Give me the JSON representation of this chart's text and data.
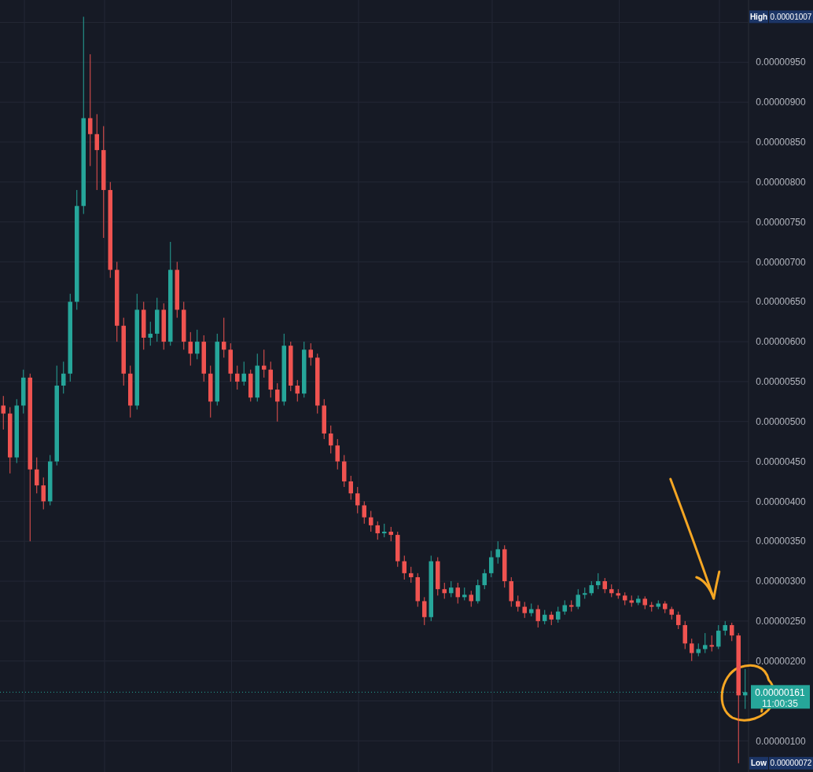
{
  "chart_data": {
    "type": "candlestick",
    "categories": [
      null,
      null,
      null,
      null,
      null,
      null,
      null,
      null,
      null,
      null,
      null,
      null,
      null,
      null,
      null,
      null,
      null,
      null,
      null,
      null,
      null,
      null,
      null,
      null,
      null,
      null,
      null,
      null,
      null,
      null,
      null,
      null,
      null,
      null,
      null,
      null,
      null,
      null,
      null,
      null,
      null,
      null,
      null,
      null,
      null,
      null,
      null,
      null,
      null,
      null,
      null,
      null,
      null,
      null,
      null,
      null,
      null,
      null,
      null,
      null,
      null,
      null,
      null,
      null,
      null,
      null,
      null,
      null,
      null,
      null,
      null,
      null,
      null,
      null,
      null,
      null,
      null,
      null,
      null,
      null,
      null,
      null,
      null,
      null,
      null,
      null,
      null,
      null,
      null,
      null,
      null,
      null,
      null,
      null,
      null,
      null,
      null,
      null,
      null,
      null,
      null,
      null,
      null,
      null,
      null,
      null,
      null,
      null,
      null,
      null,
      null,
      null
    ],
    "ohlc": [
      [
        5.2e-06,
        5.32e-06,
        4.9e-06,
        5.1e-06
      ],
      [
        5.1e-06,
        5.18e-06,
        4.35e-06,
        4.55e-06
      ],
      [
        4.55e-06,
        5.28e-06,
        4.48e-06,
        5.2e-06
      ],
      [
        5.2e-06,
        5.65e-06,
        5.1e-06,
        5.55e-06
      ],
      [
        5.55e-06,
        5.6e-06,
        3.5e-06,
        4.4e-06
      ],
      [
        4.4e-06,
        4.55e-06,
        4.1e-06,
        4.2e-06
      ],
      [
        4.2e-06,
        4.3e-06,
        3.9e-06,
        4e-06
      ],
      [
        4e-06,
        4.58e-06,
        3.95e-06,
        4.5e-06
      ],
      [
        4.5e-06,
        5.7e-06,
        4.45e-06,
        5.45e-06
      ],
      [
        5.45e-06,
        5.75e-06,
        5.35e-06,
        5.6e-06
      ],
      [
        5.6e-06,
        6.6e-06,
        5.5e-06,
        6.5e-06
      ],
      [
        6.5e-06,
        7.9e-06,
        6.4e-06,
        7.7e-06
      ],
      [
        7.7e-06,
        1.007e-05,
        7.6e-06,
        8.8e-06
      ],
      [
        8.8e-06,
        9.6e-06,
        8.2e-06,
        8.6e-06
      ],
      [
        8.6e-06,
        8.85e-06,
        7.9e-06,
        8.4e-06
      ],
      [
        8.4e-06,
        8.7e-06,
        7.3e-06,
        7.9e-06
      ],
      [
        7.9e-06,
        8e-06,
        6.8e-06,
        6.9e-06
      ],
      [
        6.9e-06,
        7e-06,
        6e-06,
        6.2e-06
      ],
      [
        6.2e-06,
        6.3e-06,
        5.45e-06,
        5.6e-06
      ],
      [
        5.6e-06,
        5.7e-06,
        5.05e-06,
        5.2e-06
      ],
      [
        5.2e-06,
        6.6e-06,
        5.15e-06,
        6.4e-06
      ],
      [
        6.4e-06,
        6.5e-06,
        5.9e-06,
        6.05e-06
      ],
      [
        6.05e-06,
        6.25e-06,
        5.95e-06,
        6.1e-06
      ],
      [
        6.1e-06,
        6.55e-06,
        6e-06,
        6.4e-06
      ],
      [
        6.4e-06,
        6.48e-06,
        5.9e-06,
        6e-06
      ],
      [
        6e-06,
        7.25e-06,
        5.95e-06,
        6.9e-06
      ],
      [
        6.9e-06,
        7e-06,
        6.3e-06,
        6.4e-06
      ],
      [
        6.4e-06,
        6.5e-06,
        5.9e-06,
        6e-06
      ],
      [
        6e-06,
        6.12e-06,
        5.7e-06,
        5.85e-06
      ],
      [
        5.85e-06,
        6.15e-06,
        5.78e-06,
        6e-06
      ],
      [
        6e-06,
        6.08e-06,
        5.5e-06,
        5.6e-06
      ],
      [
        5.6e-06,
        5.7e-06,
        5.05e-06,
        5.25e-06
      ],
      [
        5.25e-06,
        6.1e-06,
        5.2e-06,
        6e-06
      ],
      [
        6e-06,
        6.3e-06,
        5.8e-06,
        5.9e-06
      ],
      [
        5.9e-06,
        5.98e-06,
        5.5e-06,
        5.6e-06
      ],
      [
        5.6e-06,
        5.7e-06,
        5.4e-06,
        5.5e-06
      ],
      [
        5.5e-06,
        5.75e-06,
        5.45e-06,
        5.6e-06
      ],
      [
        5.6e-06,
        5.65e-06,
        5.25e-06,
        5.3e-06
      ],
      [
        5.3e-06,
        5.85e-06,
        5.25e-06,
        5.7e-06
      ],
      [
        5.7e-06,
        5.9e-06,
        5.55e-06,
        5.65e-06
      ],
      [
        5.65e-06,
        5.75e-06,
        5.3e-06,
        5.4e-06
      ],
      [
        5.4e-06,
        5.48e-06,
        5e-06,
        5.25e-06
      ],
      [
        5.25e-06,
        6.1e-06,
        5.2e-06,
        5.95e-06
      ],
      [
        5.95e-06,
        6e-06,
        5.38e-06,
        5.45e-06
      ],
      [
        5.45e-06,
        5.52e-06,
        5.25e-06,
        5.35e-06
      ],
      [
        5.35e-06,
        6e-06,
        5.3e-06,
        5.9e-06
      ],
      [
        5.9e-06,
        5.98e-06,
        5.7e-06,
        5.8e-06
      ],
      [
        5.8e-06,
        5.85e-06,
        5.1e-06,
        5.2e-06
      ],
      [
        5.2e-06,
        5.28e-06,
        4.78e-06,
        4.85e-06
      ],
      [
        4.85e-06,
        4.95e-06,
        4.6e-06,
        4.7e-06
      ],
      [
        4.7e-06,
        4.78e-06,
        4.4e-06,
        4.5e-06
      ],
      [
        4.5e-06,
        4.58e-06,
        4.18e-06,
        4.25e-06
      ],
      [
        4.25e-06,
        4.32e-06,
        4.02e-06,
        4.1e-06
      ],
      [
        4.1e-06,
        4.18e-06,
        3.85e-06,
        3.95e-06
      ],
      [
        3.95e-06,
        4e-06,
        3.72e-06,
        3.8e-06
      ],
      [
        3.8e-06,
        3.88e-06,
        3.62e-06,
        3.7e-06
      ],
      [
        3.7e-06,
        3.75e-06,
        3.52e-06,
        3.6e-06
      ],
      [
        3.6e-06,
        3.72e-06,
        3.55e-06,
        3.62e-06
      ],
      [
        3.62e-06,
        3.68e-06,
        3.5e-06,
        3.58e-06
      ],
      [
        3.58e-06,
        3.62e-06,
        3.18e-06,
        3.25e-06
      ],
      [
        3.25e-06,
        3.32e-06,
        3.02e-06,
        3.1e-06
      ],
      [
        3.1e-06,
        3.18e-06,
        2.98e-06,
        3.05e-06
      ],
      [
        3.05e-06,
        3.1e-06,
        2.68e-06,
        2.75e-06
      ],
      [
        2.75e-06,
        2.8e-06,
        2.45e-06,
        2.55e-06
      ],
      [
        2.55e-06,
        3.32e-06,
        2.5e-06,
        3.25e-06
      ],
      [
        3.25e-06,
        3.3e-06,
        2.82e-06,
        2.9e-06
      ],
      [
        2.9e-06,
        2.98e-06,
        2.78e-06,
        2.85e-06
      ],
      [
        2.85e-06,
        3e-06,
        2.8e-06,
        2.92e-06
      ],
      [
        2.92e-06,
        2.98e-06,
        2.72e-06,
        2.8e-06
      ],
      [
        2.8e-06,
        2.92e-06,
        2.76e-06,
        2.83e-06
      ],
      [
        2.83e-06,
        2.88e-06,
        2.68e-06,
        2.75e-06
      ],
      [
        2.75e-06,
        3.02e-06,
        2.72e-06,
        2.95e-06
      ],
      [
        2.95e-06,
        3.15e-06,
        2.9e-06,
        3.1e-06
      ],
      [
        3.1e-06,
        3.38e-06,
        3.05e-06,
        3.3e-06
      ],
      [
        3.3e-06,
        3.5e-06,
        3.22e-06,
        3.4e-06
      ],
      [
        3.4e-06,
        3.45e-06,
        2.92e-06,
        3e-06
      ],
      [
        3e-06,
        3.05e-06,
        2.68e-06,
        2.75e-06
      ],
      [
        2.75e-06,
        2.82e-06,
        2.62e-06,
        2.68e-06
      ],
      [
        2.68e-06,
        2.74e-06,
        2.54e-06,
        2.6e-06
      ],
      [
        2.6e-06,
        2.72e-06,
        2.56e-06,
        2.65e-06
      ],
      [
        2.65e-06,
        2.7e-06,
        2.42e-06,
        2.5e-06
      ],
      [
        2.5e-06,
        2.64e-06,
        2.46e-06,
        2.58e-06
      ],
      [
        2.58e-06,
        2.62e-06,
        2.45e-06,
        2.52e-06
      ],
      [
        2.52e-06,
        2.68e-06,
        2.48e-06,
        2.62e-06
      ],
      [
        2.62e-06,
        2.76e-06,
        2.58e-06,
        2.7e-06
      ],
      [
        2.7e-06,
        2.76e-06,
        2.62e-06,
        2.68e-06
      ],
      [
        2.68e-06,
        2.9e-06,
        2.65e-06,
        2.83e-06
      ],
      [
        2.83e-06,
        2.92e-06,
        2.78e-06,
        2.85e-06
      ],
      [
        2.85e-06,
        3e-06,
        2.82e-06,
        2.95e-06
      ],
      [
        2.95e-06,
        3.1e-06,
        2.9e-06,
        3e-06
      ],
      [
        3e-06,
        3.04e-06,
        2.85e-06,
        2.9e-06
      ],
      [
        2.9e-06,
        2.96e-06,
        2.8e-06,
        2.85e-06
      ],
      [
        2.85e-06,
        2.9e-06,
        2.78e-06,
        2.82e-06
      ],
      [
        2.82e-06,
        2.86e-06,
        2.7e-06,
        2.76e-06
      ],
      [
        2.76e-06,
        2.82e-06,
        2.68e-06,
        2.73e-06
      ],
      [
        2.73e-06,
        2.82e-06,
        2.7e-06,
        2.78e-06
      ],
      [
        2.78e-06,
        2.81e-06,
        2.65e-06,
        2.7e-06
      ],
      [
        2.7e-06,
        2.74e-06,
        2.62e-06,
        2.68e-06
      ],
      [
        2.68e-06,
        2.76e-06,
        2.65e-06,
        2.72e-06
      ],
      [
        2.72e-06,
        2.75e-06,
        2.6e-06,
        2.65e-06
      ],
      [
        2.65e-06,
        2.68e-06,
        2.52e-06,
        2.58e-06
      ],
      [
        2.58e-06,
        2.62e-06,
        2.4e-06,
        2.45e-06
      ],
      [
        2.45e-06,
        2.5e-06,
        2.15e-06,
        2.22e-06
      ],
      [
        2.22e-06,
        2.28e-06,
        2e-06,
        2.1e-06
      ],
      [
        2.1e-06,
        2.22e-06,
        2.06e-06,
        2.15e-06
      ],
      [
        2.15e-06,
        2.35e-06,
        2.1e-06,
        2.2e-06
      ],
      [
        2.2e-06,
        2.32e-06,
        2.12e-06,
        2.18e-06
      ],
      [
        2.18e-06,
        2.45e-06,
        2.15e-06,
        2.38e-06
      ],
      [
        2.38e-06,
        2.5e-06,
        2.32e-06,
        2.45e-06
      ],
      [
        2.45e-06,
        2.48e-06,
        2.25e-06,
        2.32e-06
      ],
      [
        2.32e-06,
        2.35e-06,
        7.2e-07,
        1.57e-06
      ],
      [
        1.57e-06,
        1.9e-06,
        1.4e-06,
        1.61e-06
      ]
    ],
    "ylim": [
      6.1e-07,
      1.028e-05
    ],
    "yticks": [
      {
        "value": 1e-06,
        "label": "0.00000100"
      },
      {
        "value": 1.5e-06,
        "label": null
      },
      {
        "value": 2e-06,
        "label": "0.00000200"
      },
      {
        "value": 2.5e-06,
        "label": "0.00000250"
      },
      {
        "value": 3e-06,
        "label": "0.00000300"
      },
      {
        "value": 3.5e-06,
        "label": "0.00000350"
      },
      {
        "value": 4e-06,
        "label": "0.00000400"
      },
      {
        "value": 4.5e-06,
        "label": "0.00000450"
      },
      {
        "value": 5e-06,
        "label": "0.00000500"
      },
      {
        "value": 5.5e-06,
        "label": "0.00000550"
      },
      {
        "value": 6e-06,
        "label": "0.00000600"
      },
      {
        "value": 6.5e-06,
        "label": "0.00000650"
      },
      {
        "value": 7e-06,
        "label": "0.00000700"
      },
      {
        "value": 7.5e-06,
        "label": "0.00000750"
      },
      {
        "value": 8e-06,
        "label": "0.00000800"
      },
      {
        "value": 8.5e-06,
        "label": "0.00000850"
      },
      {
        "value": 9e-06,
        "label": "0.00000900"
      },
      {
        "value": 9.5e-06,
        "label": "0.00000950"
      },
      {
        "value": 1e-05,
        "label": null
      }
    ],
    "grid": true,
    "ref_lines": [
      {
        "axis": "y",
        "value": 1.61e-06,
        "label": "0.00000161",
        "color": "#26a69a",
        "line_style": "dotted"
      }
    ],
    "annotations": [
      "High",
      "0.00001007",
      "Low",
      "0.00000072",
      "11:00:35"
    ]
  }
}
